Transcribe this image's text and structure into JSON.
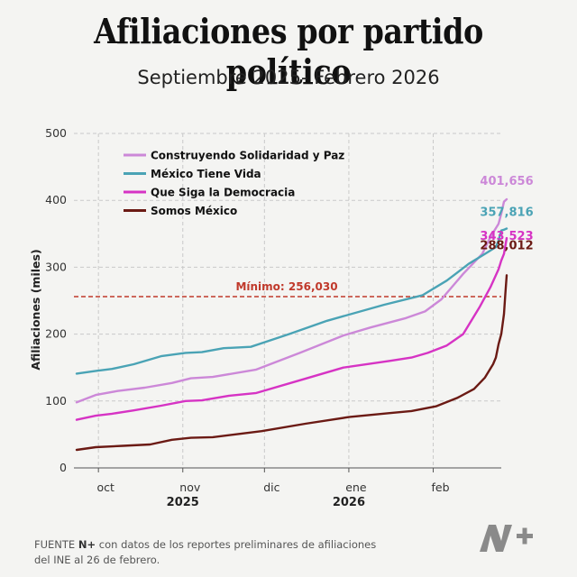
{
  "header": {
    "title": "Afiliaciones por partido político",
    "subtitle": "Septiembre 2025- Febrero 2026"
  },
  "footer": {
    "prefix": "FUENTE",
    "source_bold": "N+",
    "line1_rest": "con datos de los reportes preliminares de afiliaciones",
    "line2": "del INE al 26 de febrero."
  },
  "logo": {
    "name": "n-plus-logo",
    "color": "#8a8a8a"
  },
  "chart_data": {
    "type": "line",
    "title": "Afiliaciones por partido político",
    "subtitle": "Septiembre 2025- Febrero 2026",
    "ylabel": "Afiliaciones (miles)",
    "xlabel": "",
    "ylim": [
      0,
      500
    ],
    "xlim": [
      "2025-09-22",
      "2026-02-26"
    ],
    "yticks": [
      0,
      100,
      200,
      300,
      400,
      500
    ],
    "xticks": [
      {
        "date": "2025-10-01",
        "label": "oct"
      },
      {
        "date": "2025-11-01",
        "label": "nov"
      },
      {
        "date": "2025-12-01",
        "label": "dic"
      },
      {
        "date": "2026-01-01",
        "label": "ene"
      },
      {
        "date": "2026-02-01",
        "label": "feb"
      }
    ],
    "year_labels": [
      {
        "date": "2025-11-01",
        "label": "2025"
      },
      {
        "date": "2026-01-01",
        "label": "2026"
      }
    ],
    "grid": true,
    "legend": "top-left",
    "threshold": {
      "value": 256030,
      "label": "Mínimo: 256,030",
      "color": "#c0392b"
    },
    "series": [
      {
        "name": "Construyendo Solidaridad y Paz",
        "color": "#cc88d8",
        "end_label": "401,656",
        "points": [
          [
            "2025-09-23",
            98
          ],
          [
            "2025-09-30",
            109
          ],
          [
            "2025-10-08",
            115
          ],
          [
            "2025-10-18",
            120
          ],
          [
            "2025-10-28",
            127
          ],
          [
            "2025-11-04",
            134
          ],
          [
            "2025-11-12",
            136
          ],
          [
            "2025-11-28",
            147
          ],
          [
            "2025-12-14",
            172
          ],
          [
            "2025-12-30",
            198
          ],
          [
            "2026-01-09",
            210
          ],
          [
            "2026-01-22",
            224
          ],
          [
            "2026-01-29",
            234
          ],
          [
            "2026-02-04",
            252
          ],
          [
            "2026-02-12",
            290
          ],
          [
            "2026-02-19",
            320
          ],
          [
            "2026-02-22",
            345
          ],
          [
            "2026-02-25",
            365
          ],
          [
            "2026-02-26",
            380
          ],
          [
            "2026-02-27",
            398
          ],
          [
            "2026-02-28",
            401.656
          ]
        ]
      },
      {
        "name": "México Tiene Vida",
        "color": "#4aa3b5",
        "end_label": "357,816",
        "points": [
          [
            "2025-09-23",
            141
          ],
          [
            "2025-09-30",
            145
          ],
          [
            "2025-10-06",
            148
          ],
          [
            "2025-10-14",
            155
          ],
          [
            "2025-10-24",
            167
          ],
          [
            "2025-11-02",
            172
          ],
          [
            "2025-11-08",
            173
          ],
          [
            "2025-11-16",
            179
          ],
          [
            "2025-11-26",
            181
          ],
          [
            "2025-12-10",
            200
          ],
          [
            "2025-12-24",
            220
          ],
          [
            "2026-01-14",
            244
          ],
          [
            "2026-01-28",
            258
          ],
          [
            "2026-02-06",
            280
          ],
          [
            "2026-02-14",
            305
          ],
          [
            "2026-02-20",
            320
          ],
          [
            "2026-02-24",
            330
          ],
          [
            "2026-02-25",
            340
          ],
          [
            "2026-02-26",
            355
          ],
          [
            "2026-02-27",
            356
          ],
          [
            "2026-02-28",
            357.816
          ]
        ]
      },
      {
        "name": "Que Siga la Democracia",
        "color": "#d633c4",
        "end_label": "343,523",
        "points": [
          [
            "2025-09-23",
            72
          ],
          [
            "2025-09-30",
            78
          ],
          [
            "2025-10-06",
            81
          ],
          [
            "2025-10-14",
            86
          ],
          [
            "2025-10-24",
            93
          ],
          [
            "2025-11-02",
            100
          ],
          [
            "2025-11-08",
            101
          ],
          [
            "2025-11-18",
            108
          ],
          [
            "2025-11-28",
            112
          ],
          [
            "2025-12-14",
            131
          ],
          [
            "2025-12-30",
            150
          ],
          [
            "2026-01-16",
            160
          ],
          [
            "2026-01-24",
            165
          ],
          [
            "2026-01-30",
            172
          ],
          [
            "2026-02-06",
            183
          ],
          [
            "2026-02-12",
            200
          ],
          [
            "2026-02-18",
            240
          ],
          [
            "2026-02-22",
            270
          ],
          [
            "2026-02-25",
            297
          ],
          [
            "2026-02-26",
            310
          ],
          [
            "2026-02-27",
            320
          ],
          [
            "2026-02-28",
            343.523
          ]
        ]
      },
      {
        "name": "Somos México",
        "color": "#6b1a14",
        "end_label": "288,012",
        "points": [
          [
            "2025-09-23",
            27
          ],
          [
            "2025-09-30",
            31
          ],
          [
            "2025-10-10",
            33
          ],
          [
            "2025-10-20",
            35
          ],
          [
            "2025-10-28",
            42
          ],
          [
            "2025-11-04",
            45
          ],
          [
            "2025-11-12",
            46
          ],
          [
            "2025-11-22",
            51
          ],
          [
            "2025-11-30",
            55
          ],
          [
            "2025-12-16",
            66
          ],
          [
            "2026-01-01",
            76
          ],
          [
            "2026-01-16",
            82
          ],
          [
            "2026-01-24",
            85
          ],
          [
            "2026-02-02",
            92
          ],
          [
            "2026-02-10",
            105
          ],
          [
            "2026-02-16",
            118
          ],
          [
            "2026-02-20",
            135
          ],
          [
            "2026-02-23",
            155
          ],
          [
            "2026-02-24",
            165
          ],
          [
            "2026-02-25",
            185
          ],
          [
            "2026-02-26",
            200
          ],
          [
            "2026-02-27",
            230
          ],
          [
            "2026-02-27T12:00",
            260
          ],
          [
            "2026-02-28",
            288.012
          ]
        ]
      }
    ]
  }
}
